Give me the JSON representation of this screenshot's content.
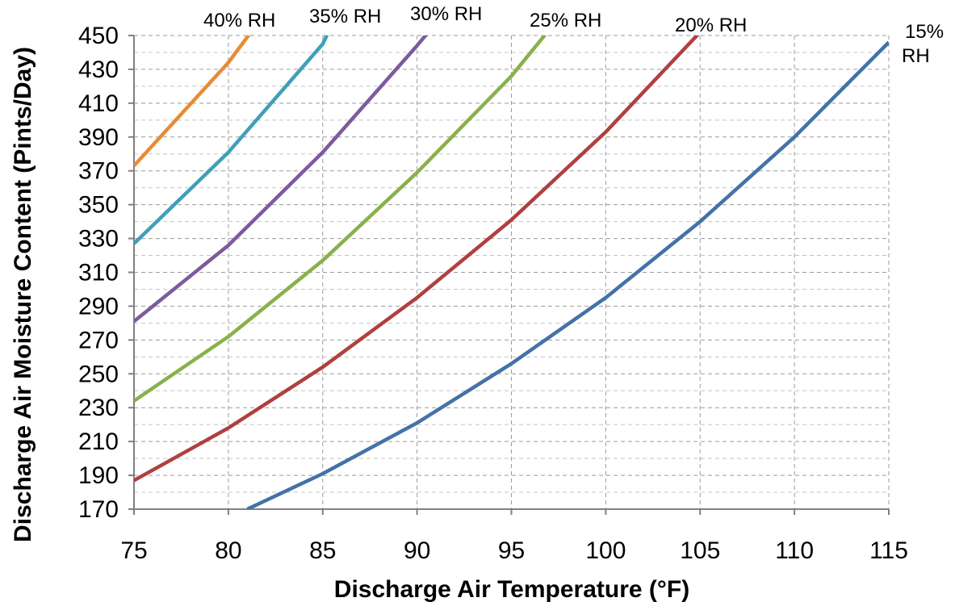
{
  "chart_data": {
    "type": "line",
    "title": "",
    "xlabel": "Discharge Air Temperature (°F)",
    "ylabel": "Discharge Air Moisture Content (Pints/Day)",
    "xlim": [
      75,
      115
    ],
    "ylim": [
      170,
      450
    ],
    "xticks": [
      75,
      80,
      85,
      90,
      95,
      100,
      105,
      110,
      115
    ],
    "yticks": [
      170,
      190,
      210,
      230,
      250,
      270,
      290,
      310,
      330,
      350,
      370,
      390,
      410,
      430,
      450
    ],
    "grid": true,
    "legend": "inline labels near line ends",
    "series": [
      {
        "name": "15% RH",
        "color": "#4472A8",
        "label_lines": [
          "15%",
          "RH"
        ],
        "points": [
          [
            81,
            170
          ],
          [
            85,
            191
          ],
          [
            90,
            221
          ],
          [
            95,
            256
          ],
          [
            100,
            295
          ],
          [
            105,
            340
          ],
          [
            110,
            390
          ],
          [
            115,
            446
          ]
        ]
      },
      {
        "name": "20% RH",
        "color": "#B0403E",
        "label_lines": [
          "20% RH"
        ],
        "points": [
          [
            75,
            187
          ],
          [
            80,
            218
          ],
          [
            85,
            254
          ],
          [
            90,
            295
          ],
          [
            95,
            341
          ],
          [
            100,
            393
          ],
          [
            105,
            452
          ]
        ]
      },
      {
        "name": "25% RH",
        "color": "#8AB04A",
        "label_lines": [
          "25% RH"
        ],
        "points": [
          [
            75,
            234
          ],
          [
            80,
            272
          ],
          [
            85,
            317
          ],
          [
            90,
            369
          ],
          [
            95,
            426
          ],
          [
            96.9,
            452
          ]
        ]
      },
      {
        "name": "30% RH",
        "color": "#7B5B9E",
        "label_lines": [
          "30% RH"
        ],
        "points": [
          [
            75,
            281
          ],
          [
            80,
            326
          ],
          [
            85,
            381
          ],
          [
            90,
            444
          ],
          [
            90.6,
            452
          ]
        ]
      },
      {
        "name": "35% RH",
        "color": "#3FA0B8",
        "label_lines": [
          "35% RH"
        ],
        "points": [
          [
            75,
            327
          ],
          [
            80,
            381
          ],
          [
            85,
            445
          ],
          [
            85.3,
            452
          ]
        ]
      },
      {
        "name": "40% RH",
        "color": "#E88A35",
        "label_lines": [
          "40% RH"
        ],
        "points": [
          [
            75,
            373
          ],
          [
            80,
            434
          ],
          [
            81.2,
            452
          ]
        ]
      }
    ]
  }
}
